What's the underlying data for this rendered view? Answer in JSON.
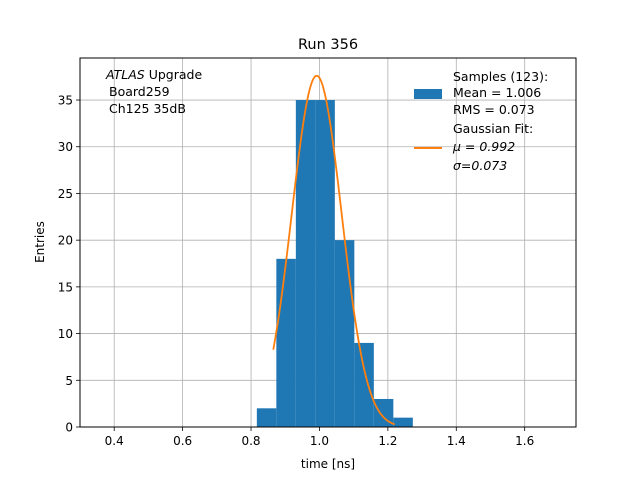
{
  "chart_data": {
    "type": "bar",
    "title": "Run 356",
    "xlabel": "time [ns]",
    "ylabel": "Entries",
    "xlim": [
      0.3,
      1.75
    ],
    "ylim": [
      0,
      39.5
    ],
    "x_ticks": [
      0.4,
      0.6,
      0.8,
      1.0,
      1.2,
      1.4,
      1.6
    ],
    "x_tick_labels": [
      "0.4",
      "0.6",
      "0.8",
      "1.0",
      "1.2",
      "1.4",
      "1.6"
    ],
    "y_ticks": [
      0,
      5,
      10,
      15,
      20,
      25,
      30,
      35
    ],
    "y_tick_labels": [
      "0",
      "5",
      "10",
      "15",
      "20",
      "25",
      "30",
      "35"
    ],
    "grid": true,
    "legend_position": "top-right",
    "annotation": {
      "experiment": "ATLAS",
      "experiment_suffix": " Upgrade",
      "board": "Board259",
      "channel": "Ch125 35dB"
    },
    "histogram": {
      "name": "Samples (123):",
      "stats": [
        " Mean = 1.006",
        " RMS = 0.073"
      ],
      "color": "#1f77b4",
      "bin_edges": [
        0.817,
        0.874,
        0.931,
        0.988,
        1.045,
        1.102,
        1.159,
        1.216,
        1.273
      ],
      "counts": [
        2,
        18,
        35,
        35,
        20,
        9,
        3,
        1
      ]
    },
    "fit": {
      "name": "Gaussian Fit:",
      "params": [
        " μ = 0.992",
        " σ=0.073"
      ],
      "color": "#ff7f0e",
      "mu": 0.992,
      "sigma": 0.073,
      "amplitude": 37.6,
      "x_range": [
        0.865,
        1.22
      ]
    }
  }
}
